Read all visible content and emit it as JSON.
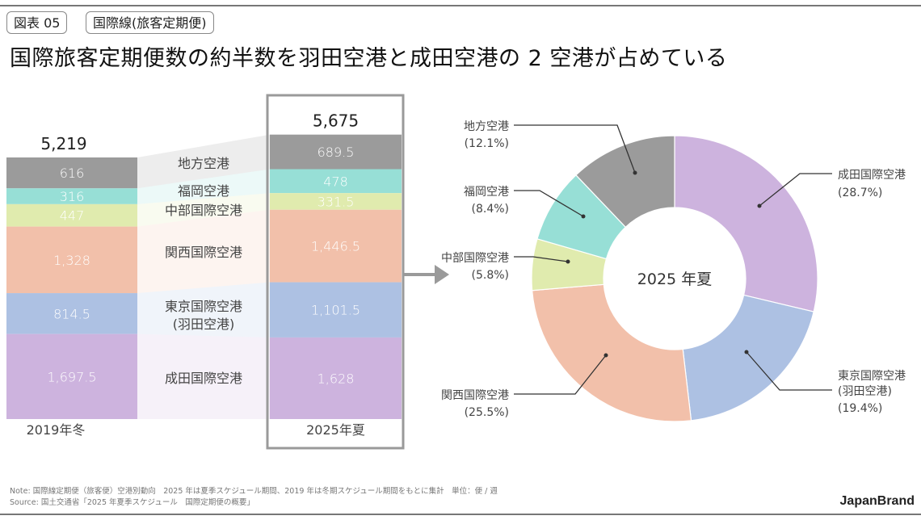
{
  "header": {
    "figure_tag": "図表 05",
    "category_tag": "国際線(旅客定期便)",
    "title": "国際旅客定期便数の約半数を羽田空港と成田空港の 2 空港が占めている"
  },
  "chart_data": [
    {
      "type": "bar",
      "subtype": "stacked",
      "title": "国際旅客定期便数（便/週）",
      "categories": [
        "2019年冬",
        "2025年夏"
      ],
      "totals": [
        "5,219",
        "5,675"
      ],
      "highlighted_category": "2025年夏",
      "series": [
        {
          "name": "地方空港",
          "values": [
            616,
            689.5
          ],
          "labels": [
            "616",
            "689.5"
          ],
          "color": "#9b9b9b"
        },
        {
          "name": "福岡空港",
          "values": [
            316,
            478
          ],
          "labels": [
            "316",
            "478"
          ],
          "color": "#97dfd6"
        },
        {
          "name": "中部国際空港",
          "values": [
            447,
            331.5
          ],
          "labels": [
            "447",
            "331.5"
          ],
          "color": "#e0ebae"
        },
        {
          "name": "関西国際空港",
          "values": [
            1328,
            1446.5
          ],
          "labels": [
            "1,328",
            "1,446.5"
          ],
          "color": "#f2c0aa"
        },
        {
          "name": "東京国際空港\n(羽田空港)",
          "values": [
            814.5,
            1101.5
          ],
          "labels": [
            "814.5",
            "1,101.5"
          ],
          "color": "#adc1e3"
        },
        {
          "name": "成田国際空港",
          "values": [
            1697.5,
            1628
          ],
          "labels": [
            "1,697.5",
            "1,628"
          ],
          "color": "#cdb3de"
        }
      ],
      "band_labels": [
        "地方空港",
        "福岡空港",
        "中部国際空港",
        "関西国際空港",
        "東京国際空港",
        "(羽田空港)",
        "成田国際空港"
      ]
    },
    {
      "type": "pie",
      "subtype": "donut",
      "center_label": "2025 年夏",
      "slices": [
        {
          "name": "成田国際空港",
          "value": 28.7,
          "label": "(28.7%)",
          "color": "#cdb3de"
        },
        {
          "name": "東京国際空港",
          "name2": "(羽田空港)",
          "value": 19.4,
          "label": "(19.4%)",
          "color": "#adc1e3"
        },
        {
          "name": "関西国際空港",
          "value": 25.5,
          "label": "(25.5%)",
          "color": "#f2c0aa"
        },
        {
          "name": "中部国際空港",
          "value": 5.8,
          "label": "(5.8%)",
          "color": "#e0ebae"
        },
        {
          "name": "福岡空港",
          "value": 8.4,
          "label": "(8.4%)",
          "color": "#97dfd6"
        },
        {
          "name": "地方空港",
          "value": 12.1,
          "label": "(12.1%)",
          "color": "#9b9b9b"
        }
      ]
    }
  ],
  "footer": {
    "note": "Note: 国際線定期便（旅客便）空港別動向　2025 年は夏季スケジュール期間、2019 年は冬期スケジュール期間をもとに集計　単位：便 / 週",
    "source": "Source: 国土交通省「2025 年夏季スケジュール　国際定期便の概要」",
    "brand": "JapanBrand"
  }
}
